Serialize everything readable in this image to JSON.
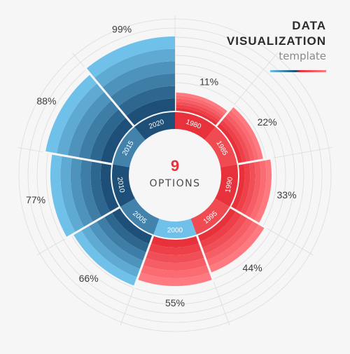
{
  "title": {
    "line1": "DATA",
    "line2": "VISUALIZATION",
    "subtitle": "template"
  },
  "center": {
    "count": "9",
    "label": "OPTIONS"
  },
  "colors": {
    "background": "#f6f6f6",
    "red_dark": "#e8323b",
    "red_light": "#ff7a80",
    "blue_dark": "#1d4f78",
    "blue_light": "#6fc1ea",
    "grid": "#dcdcdc",
    "label": "#3c3c3c"
  },
  "chart_data": {
    "type": "radial-bar",
    "categories": [
      "1980",
      "1985",
      "1990",
      "1995",
      "2000",
      "2005",
      "2010",
      "2015",
      "2020"
    ],
    "values": [
      11,
      22,
      33,
      44,
      55,
      66,
      77,
      88,
      99
    ],
    "value_labels": [
      "11%",
      "22%",
      "33%",
      "44%",
      "55%",
      "66%",
      "77%",
      "88%",
      "99%"
    ],
    "unit": "%",
    "grid": true
  }
}
